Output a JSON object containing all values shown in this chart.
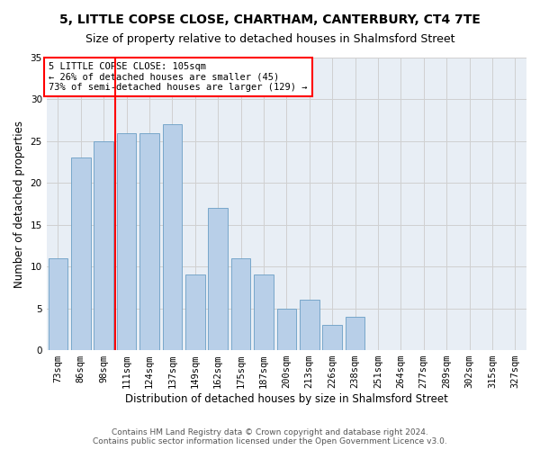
{
  "title1": "5, LITTLE COPSE CLOSE, CHARTHAM, CANTERBURY, CT4 7TE",
  "title2": "Size of property relative to detached houses in Shalmsford Street",
  "xlabel": "Distribution of detached houses by size in Shalmsford Street",
  "ylabel": "Number of detached properties",
  "categories": [
    "73sqm",
    "86sqm",
    "98sqm",
    "111sqm",
    "124sqm",
    "137sqm",
    "149sqm",
    "162sqm",
    "175sqm",
    "187sqm",
    "200sqm",
    "213sqm",
    "226sqm",
    "238sqm",
    "251sqm",
    "264sqm",
    "277sqm",
    "289sqm",
    "302sqm",
    "315sqm",
    "327sqm"
  ],
  "values": [
    11,
    23,
    25,
    26,
    26,
    27,
    9,
    17,
    11,
    9,
    5,
    6,
    3,
    4,
    0,
    0,
    0,
    0,
    0,
    0,
    0
  ],
  "bar_color": "#b8cfe8",
  "bar_edge_color": "#6a9ec5",
  "annotation_text": "5 LITTLE COPSE CLOSE: 105sqm\n← 26% of detached houses are smaller (45)\n73% of semi-detached houses are larger (129) →",
  "annotation_box_color": "white",
  "annotation_box_edge_color": "red",
  "vline_color": "red",
  "vline_x": 2.5,
  "ylim": [
    0,
    35
  ],
  "yticks": [
    0,
    5,
    10,
    15,
    20,
    25,
    30,
    35
  ],
  "grid_color": "#d0d0d0",
  "bg_color": "#e8eef5",
  "footer1": "Contains HM Land Registry data © Crown copyright and database right 2024.",
  "footer2": "Contains public sector information licensed under the Open Government Licence v3.0.",
  "title1_fontsize": 10,
  "title2_fontsize": 9,
  "xlabel_fontsize": 8.5,
  "ylabel_fontsize": 8.5,
  "tick_fontsize": 7.5,
  "annotation_fontsize": 7.5,
  "footer_fontsize": 6.5
}
